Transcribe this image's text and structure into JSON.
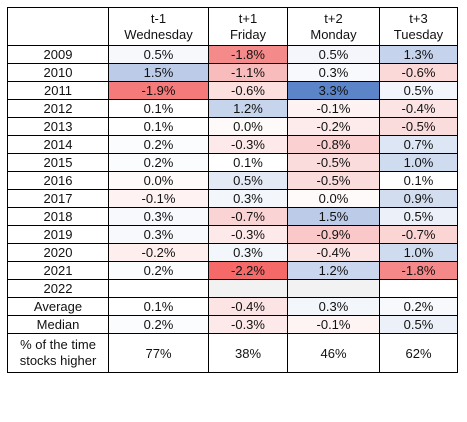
{
  "header": {
    "columns": [
      {
        "offset": "t-1",
        "day": "Wednesday"
      },
      {
        "offset": "t+1",
        "day": "Friday"
      },
      {
        "offset": "t+2",
        "day": "Monday"
      },
      {
        "offset": "t+3",
        "day": "Tuesday"
      }
    ]
  },
  "rows": [
    {
      "label": "2009",
      "cells": [
        {
          "text": "0.5%",
          "bg": "#f6f8fc"
        },
        {
          "text": "-1.8%",
          "bg": "#f58a8a"
        },
        {
          "text": "0.5%",
          "bg": "#f4f6fb"
        },
        {
          "text": "1.3%",
          "bg": "#c5d3ec"
        }
      ]
    },
    {
      "label": "2010",
      "cells": [
        {
          "text": "1.5%",
          "bg": "#bccbe8"
        },
        {
          "text": "-1.1%",
          "bg": "#f9bcbc"
        },
        {
          "text": "0.3%",
          "bg": "#f7f9fc"
        },
        {
          "text": "-0.6%",
          "bg": "#fbd9d9"
        }
      ]
    },
    {
      "label": "2011",
      "cells": [
        {
          "text": "-1.9%",
          "bg": "#f57a7a"
        },
        {
          "text": "-0.6%",
          "bg": "#fcdfdf"
        },
        {
          "text": "3.3%",
          "bg": "#5b84c9"
        },
        {
          "text": "0.5%",
          "bg": "#f2f5fb"
        }
      ]
    },
    {
      "label": "2012",
      "cells": [
        {
          "text": "0.1%",
          "bg": "#ffffff"
        },
        {
          "text": "1.2%",
          "bg": "#c6d4ec"
        },
        {
          "text": "-0.1%",
          "bg": "#fdf3f3"
        },
        {
          "text": "-0.4%",
          "bg": "#fce4e4"
        }
      ]
    },
    {
      "label": "2013",
      "cells": [
        {
          "text": "0.1%",
          "bg": "#ffffff"
        },
        {
          "text": "0.0%",
          "bg": "#fffafa"
        },
        {
          "text": "-0.2%",
          "bg": "#fdeaea"
        },
        {
          "text": "-0.5%",
          "bg": "#fbdcdc"
        }
      ]
    },
    {
      "label": "2014",
      "cells": [
        {
          "text": "0.2%",
          "bg": "#fbfcfe"
        },
        {
          "text": "-0.3%",
          "bg": "#fde9e9"
        },
        {
          "text": "-0.8%",
          "bg": "#fad0d0"
        },
        {
          "text": "0.7%",
          "bg": "#dde6f4"
        }
      ]
    },
    {
      "label": "2015",
      "cells": [
        {
          "text": "0.2%",
          "bg": "#fbfcfe"
        },
        {
          "text": "0.1%",
          "bg": "#ffffff"
        },
        {
          "text": "-0.5%",
          "bg": "#fbdcdc"
        },
        {
          "text": "1.0%",
          "bg": "#cfdbef"
        }
      ]
    },
    {
      "label": "2016",
      "cells": [
        {
          "text": "0.0%",
          "bg": "#fffafa"
        },
        {
          "text": "0.5%",
          "bg": "#e3eaf6"
        },
        {
          "text": "-0.5%",
          "bg": "#fbdcdc"
        },
        {
          "text": "0.1%",
          "bg": "#ffffff"
        }
      ]
    },
    {
      "label": "2017",
      "cells": [
        {
          "text": "-0.1%",
          "bg": "#fef2f2"
        },
        {
          "text": "0.3%",
          "bg": "#f3f6fb"
        },
        {
          "text": "0.0%",
          "bg": "#fffafa"
        },
        {
          "text": "0.9%",
          "bg": "#d3ddf0"
        }
      ]
    },
    {
      "label": "2018",
      "cells": [
        {
          "text": "0.3%",
          "bg": "#f7f9fc"
        },
        {
          "text": "-0.7%",
          "bg": "#fad4d4"
        },
        {
          "text": "1.5%",
          "bg": "#bccbe8"
        },
        {
          "text": "0.5%",
          "bg": "#ecf1f9"
        }
      ]
    },
    {
      "label": "2019",
      "cells": [
        {
          "text": "0.3%",
          "bg": "#f7f9fc"
        },
        {
          "text": "-0.3%",
          "bg": "#fde9e9"
        },
        {
          "text": "-0.9%",
          "bg": "#fac8c8"
        },
        {
          "text": "-0.7%",
          "bg": "#fbd4d4"
        }
      ]
    },
    {
      "label": "2020",
      "cells": [
        {
          "text": "-0.2%",
          "bg": "#feeeee"
        },
        {
          "text": "0.3%",
          "bg": "#f3f6fb"
        },
        {
          "text": "-0.4%",
          "bg": "#fce4e4"
        },
        {
          "text": "1.0%",
          "bg": "#cfdbef"
        }
      ]
    },
    {
      "label": "2021",
      "cells": [
        {
          "text": "0.2%",
          "bg": "#fbfcfe"
        },
        {
          "text": "-2.2%",
          "bg": "#f66969"
        },
        {
          "text": "1.2%",
          "bg": "#c9d6ed"
        },
        {
          "text": "-1.8%",
          "bg": "#f58888"
        }
      ]
    },
    {
      "label": "2022",
      "cells": [
        {
          "text": "",
          "bg": "#ffffff"
        },
        {
          "text": "",
          "bg": "#f2f2f2"
        },
        {
          "text": "",
          "bg": "#f2f2f2"
        },
        {
          "text": "",
          "bg": "#ffffff"
        }
      ]
    },
    {
      "label": "Average",
      "cells": [
        {
          "text": "0.1%",
          "bg": "#ffffff"
        },
        {
          "text": "-0.4%",
          "bg": "#fce4e4"
        },
        {
          "text": "0.3%",
          "bg": "#f3f6fb"
        },
        {
          "text": "0.2%",
          "bg": "#f7f9fc"
        }
      ]
    },
    {
      "label": "Median",
      "cells": [
        {
          "text": "0.2%",
          "bg": "#fbfcfe"
        },
        {
          "text": "-0.3%",
          "bg": "#fde9e9"
        },
        {
          "text": "-0.1%",
          "bg": "#fef4f4"
        },
        {
          "text": "0.5%",
          "bg": "#ecf1f9"
        }
      ]
    }
  ],
  "footer": {
    "label_line1": "% of the time",
    "label_line2": "stocks higher",
    "values": [
      "77%",
      "38%",
      "46%",
      "62%"
    ]
  }
}
